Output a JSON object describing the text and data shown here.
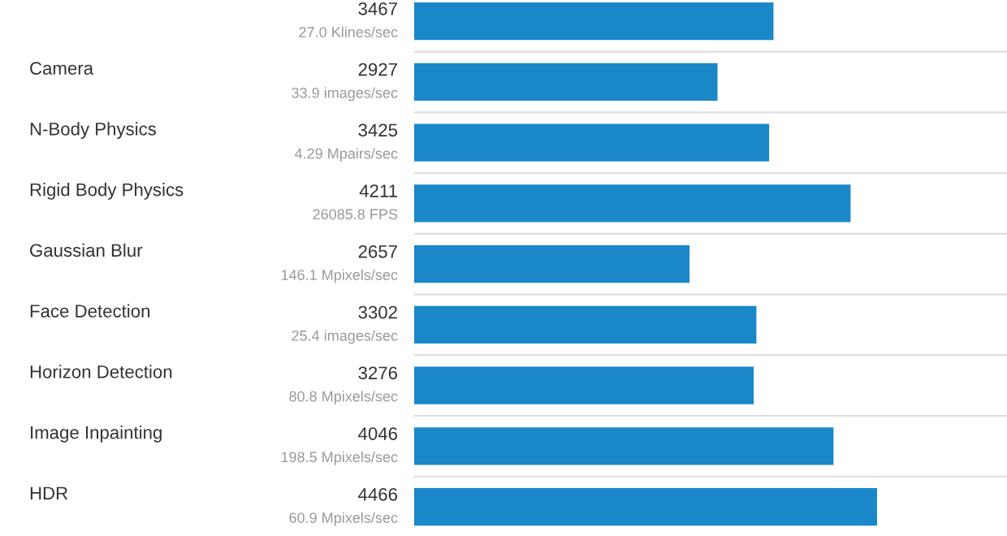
{
  "chart_data": {
    "type": "bar",
    "orientation": "horizontal",
    "categories": [
      null,
      "Camera",
      "N-Body Physics",
      "Rigid Body Physics",
      "Gaussian Blur",
      "Face Detection",
      "Horizon Detection",
      "Image Inpainting",
      "HDR"
    ],
    "values": [
      3467,
      2927,
      3425,
      4211,
      2657,
      3302,
      3276,
      4046,
      4466
    ],
    "color": "#1a87c9",
    "data_labels": true,
    "annotations": [
      "27.0 Klines/sec",
      "33.9 images/sec",
      "4.29 Mpairs/sec",
      "26085.8 FPS",
      "146.1 Mpixels/sec",
      "25.4 images/sec",
      "80.8 Mpixels/sec",
      "198.5 Mpixels/sec",
      "60.9 Mpixels/sec"
    ],
    "xlim": [
      0,
      5720
    ]
  }
}
